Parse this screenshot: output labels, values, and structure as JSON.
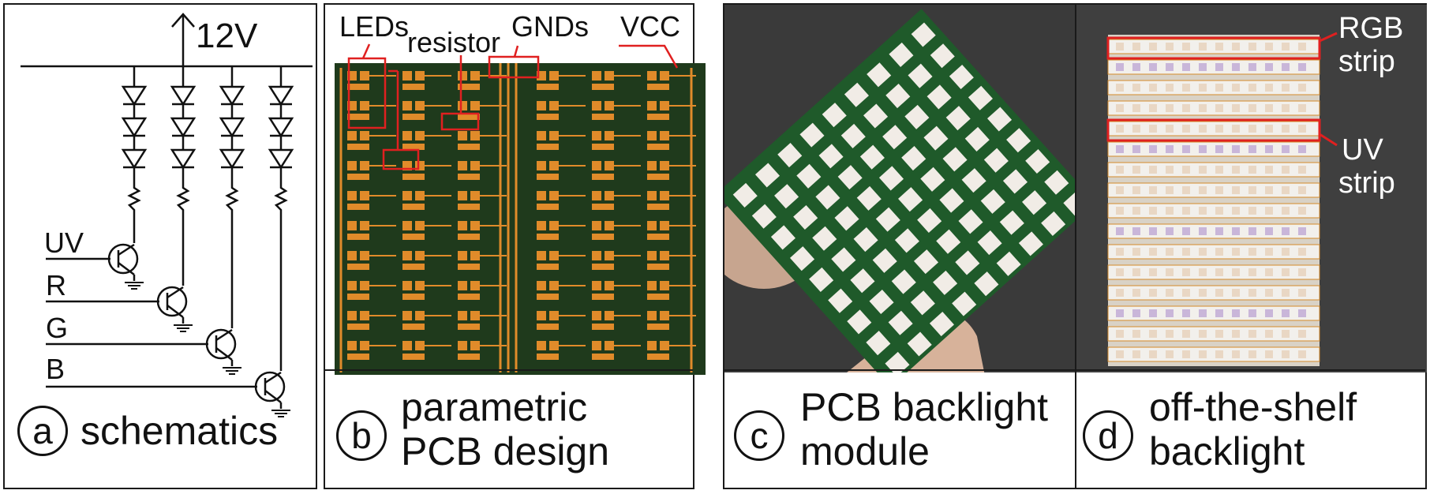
{
  "panels": {
    "a": {
      "letter": "a",
      "caption_line1": "schematics",
      "labels": {
        "voltage": "12V",
        "uv": "UV",
        "r": "R",
        "g": "G",
        "b": "B"
      }
    },
    "b": {
      "letter": "b",
      "caption_line1": "parametric",
      "caption_line2": "PCB design",
      "labels": {
        "leds": "LEDs",
        "resistor": "resistor",
        "gnds": "GNDs",
        "vcc": "VCC"
      }
    },
    "c": {
      "letter": "c",
      "caption_line1": "PCB backlight",
      "caption_line2": "module"
    },
    "d": {
      "letter": "d",
      "caption_line1": "off-the-shelf",
      "caption_line2": "backlight",
      "labels": {
        "rgb1": "RGB",
        "rgb2": "strip",
        "uv1": "UV",
        "uv2": "strip"
      }
    }
  },
  "colors": {
    "pcb_green": "#1f3a1c",
    "pad_orange": "#e08b2a",
    "highlight_red": "#e02020",
    "photo_gray": "#3a3a3a"
  }
}
